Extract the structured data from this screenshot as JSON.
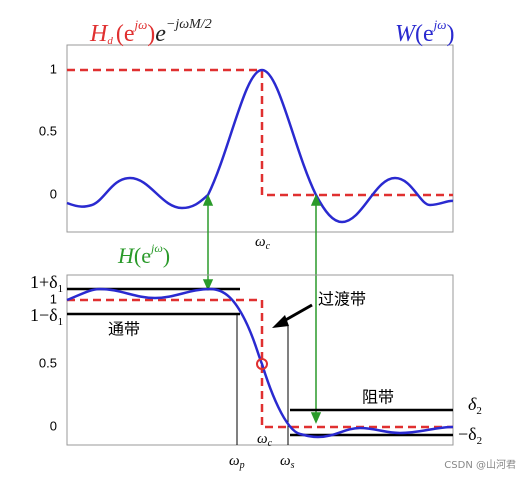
{
  "top_plot": {
    "title_left": [
      "H",
      "d",
      "(e",
      "jω",
      ")",
      "e",
      "−jωM/2"
    ],
    "title_right": [
      "W",
      "(e",
      "jω",
      ")"
    ],
    "yticks": [
      "1",
      "0.5",
      "0"
    ],
    "x_label": [
      "ω",
      "c"
    ]
  },
  "middle_label": [
    "H",
    "(e",
    "jω",
    ")"
  ],
  "bottom_plot": {
    "yticks": [
      "1",
      "0.5",
      "0"
    ],
    "left_labels": [
      [
        "1+δ",
        "1"
      ],
      [
        "1−δ",
        "1"
      ]
    ],
    "right_labels": [
      [
        "δ",
        "2"
      ],
      [
        "−δ",
        "2"
      ]
    ],
    "passband": "通带",
    "transition": "过渡带",
    "stopband": "阻带",
    "x_labels": [
      [
        "ω",
        "p"
      ],
      [
        "ω",
        "c"
      ],
      [
        "ω",
        "s"
      ]
    ]
  },
  "watermark": "CSDN @山河君"
}
